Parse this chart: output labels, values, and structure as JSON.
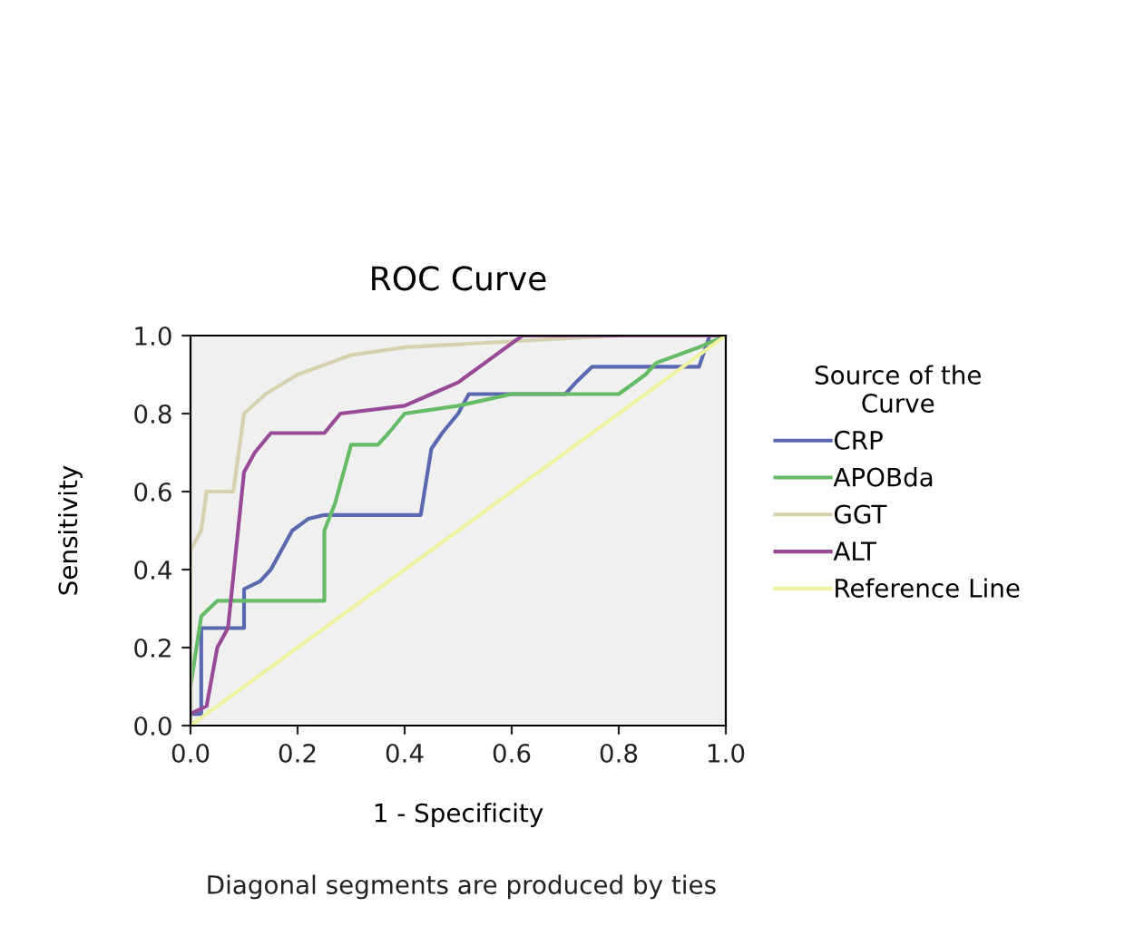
{
  "chart_data": {
    "type": "line",
    "title": "ROC Curve",
    "xlabel": "1 - Specificity",
    "ylabel": "Sensitivity",
    "legend_title": "Source of the\nCurve",
    "xlim": [
      0.0,
      1.0
    ],
    "ylim": [
      0.0,
      1.0
    ],
    "xticks": [
      {
        "value": 0,
        "label": "0.0"
      },
      {
        "value": 0.2,
        "label": "0.2"
      },
      {
        "value": 0.4,
        "label": "0.4"
      },
      {
        "value": 0.6,
        "label": "0.6"
      },
      {
        "value": 0.8,
        "label": "0.8"
      },
      {
        "value": 1,
        "label": "1.0"
      }
    ],
    "yticks": [
      {
        "value": 0,
        "label": "0.0"
      },
      {
        "value": 0.2,
        "label": "0.2"
      },
      {
        "value": 0.4,
        "label": "0.4"
      },
      {
        "value": 0.6,
        "label": "0.6"
      },
      {
        "value": 0.8,
        "label": "0.8"
      },
      {
        "value": 1,
        "label": "1.0"
      }
    ],
    "grid": false,
    "legend": "right",
    "marker": "none",
    "line_style": "solid",
    "annotations": [
      "Diagonal segments are produced by ties"
    ],
    "series": [
      {
        "name": "CRP",
        "color": "#5a68b0",
        "x": [
          0,
          0.02,
          0.02,
          0.1,
          0.1,
          0.13,
          0.15,
          0.17,
          0.19,
          0.22,
          0.25,
          0.43,
          0.45,
          0.47,
          0.5,
          0.52,
          0.7,
          0.72,
          0.75,
          0.95,
          0.97,
          1.0
        ],
        "values": [
          0.03,
          0.03,
          0.25,
          0.25,
          0.35,
          0.37,
          0.4,
          0.45,
          0.5,
          0.53,
          0.54,
          0.54,
          0.71,
          0.75,
          0.8,
          0.85,
          0.85,
          0.88,
          0.92,
          0.92,
          1.0,
          1.0
        ]
      },
      {
        "name": "APOBda",
        "color": "#66bb66",
        "x": [
          0,
          0.0,
          0.02,
          0.05,
          0.25,
          0.25,
          0.27,
          0.3,
          0.35,
          0.37,
          0.4,
          0.5,
          0.6,
          0.8,
          0.85,
          0.87,
          0.95,
          1.0
        ],
        "values": [
          0.0,
          0.1,
          0.28,
          0.32,
          0.32,
          0.5,
          0.57,
          0.72,
          0.72,
          0.75,
          0.8,
          0.82,
          0.85,
          0.85,
          0.9,
          0.93,
          0.97,
          1.0
        ]
      },
      {
        "name": "GGT",
        "color": "#d6d2b0",
        "x": [
          0,
          0,
          0.02,
          0.03,
          0.08,
          0.1,
          0.14,
          0.2,
          0.3,
          0.4,
          0.8,
          1.0
        ],
        "values": [
          0.0,
          0.45,
          0.5,
          0.6,
          0.6,
          0.8,
          0.85,
          0.9,
          0.95,
          0.97,
          1.0,
          1.0
        ]
      },
      {
        "name": "ALT",
        "color": "#994a96",
        "x": [
          0,
          0.03,
          0.05,
          0.07,
          0.1,
          0.12,
          0.15,
          0.25,
          0.28,
          0.4,
          0.45,
          0.5,
          0.55,
          0.62,
          1.0
        ],
        "values": [
          0.03,
          0.05,
          0.2,
          0.25,
          0.65,
          0.7,
          0.75,
          0.75,
          0.8,
          0.82,
          0.85,
          0.88,
          0.93,
          1.0,
          1.0
        ]
      },
      {
        "name": "Reference Line",
        "color": "#eef2a0",
        "x": [
          0,
          1
        ],
        "values": [
          0,
          1
        ]
      }
    ]
  }
}
